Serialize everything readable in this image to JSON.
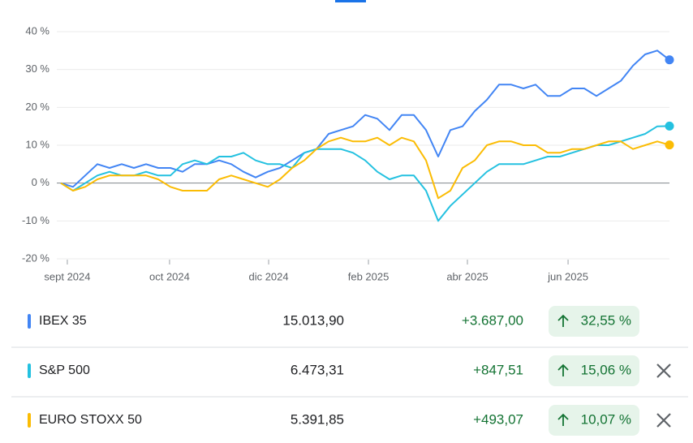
{
  "chart_data": {
    "type": "line",
    "ylim": [
      -20,
      40
    ],
    "yticks": [
      {
        "value": -20,
        "label": "-20 %"
      },
      {
        "value": -10,
        "label": "-10 %"
      },
      {
        "value": 0,
        "label": "0 %"
      },
      {
        "value": 10,
        "label": "10 %"
      },
      {
        "value": 20,
        "label": "20 %"
      },
      {
        "value": 30,
        "label": "30 %"
      },
      {
        "value": 40,
        "label": "40 %"
      }
    ],
    "xlim": [
      -2,
      50
    ],
    "xticks": [
      {
        "value": 0.53,
        "label": "sept 2024"
      },
      {
        "value": 8.93,
        "label": "oct 2024"
      },
      {
        "value": 17.07,
        "label": "dic 2024"
      },
      {
        "value": 25.27,
        "label": "feb 2025"
      },
      {
        "value": 33.4,
        "label": "abr 2025"
      },
      {
        "value": 41.67,
        "label": "jun 2025"
      }
    ],
    "grid": true,
    "series": [
      {
        "name": "IBEX 35",
        "color": "#4285f4",
        "values": [
          0,
          -1,
          2,
          5,
          4,
          5,
          4,
          5,
          4,
          4,
          3,
          5,
          5,
          6,
          5,
          3,
          1.5,
          3,
          4,
          6,
          8,
          9,
          13,
          14,
          15,
          18,
          17,
          14,
          18,
          18,
          14,
          7,
          14,
          15,
          19,
          22,
          26,
          26,
          25,
          26,
          23,
          23,
          25,
          25,
          23,
          25,
          27,
          31,
          34,
          35,
          32.55
        ]
      },
      {
        "name": "S&P 500",
        "color": "#24c1e0",
        "values": [
          0,
          -2,
          0,
          2,
          3,
          2,
          2,
          3,
          2,
          2,
          5,
          6,
          5,
          7,
          7,
          8,
          6,
          5,
          5,
          4,
          8,
          9,
          9,
          9,
          8,
          6,
          3,
          1,
          2,
          2,
          -2,
          -10,
          -6,
          -3,
          0,
          3,
          5,
          5,
          5,
          6,
          7,
          7,
          8,
          9,
          10,
          10,
          11,
          12,
          13,
          15,
          15.06
        ]
      },
      {
        "name": "EURO STOXX 50",
        "color": "#fbbc04",
        "values": [
          0,
          -2,
          -1,
          1,
          2,
          2,
          2,
          2,
          1,
          -1,
          -2,
          -2,
          -2,
          1,
          2,
          1,
          0,
          -1,
          1,
          4,
          6,
          9,
          11,
          12,
          11,
          11,
          12,
          10,
          12,
          11,
          6,
          -4,
          -2,
          4,
          6,
          10,
          11,
          11,
          10,
          10,
          8,
          8,
          9,
          9,
          10,
          11,
          11,
          9,
          10,
          11,
          10.07
        ]
      }
    ]
  },
  "table": {
    "rows": [
      {
        "name": "IBEX 35",
        "price": "15.013,90",
        "change": "+3.687,00",
        "percent": "32,55 %"
      },
      {
        "name": "S&P 500",
        "price": "6.473,31",
        "change": "+847,51",
        "percent": "15,06 %"
      },
      {
        "name": "EURO STOXX 50",
        "price": "5.391,85",
        "change": "+493,07",
        "percent": "10,07 %"
      }
    ]
  }
}
